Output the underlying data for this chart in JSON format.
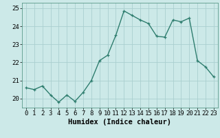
{
  "x": [
    0,
    1,
    2,
    3,
    4,
    5,
    6,
    7,
    8,
    9,
    10,
    11,
    12,
    13,
    14,
    15,
    16,
    17,
    18,
    19,
    20,
    21,
    22,
    23
  ],
  "y": [
    20.6,
    20.5,
    20.7,
    20.2,
    19.8,
    20.2,
    19.85,
    20.35,
    21.0,
    22.1,
    22.4,
    23.5,
    24.85,
    24.6,
    24.35,
    24.15,
    23.45,
    23.4,
    24.35,
    24.25,
    24.45,
    22.1,
    21.75,
    21.2
  ],
  "line_color": "#2e7d6e",
  "marker": "+",
  "marker_size": 3,
  "line_width": 1.0,
  "bg_color": "#cce9e8",
  "grid_color": "#aacfcf",
  "xlabel": "Humidex (Indice chaleur)",
  "xlabel_fontsize": 7.5,
  "ylim": [
    19.5,
    25.3
  ],
  "xlim": [
    -0.5,
    23.5
  ],
  "yticks": [
    20,
    21,
    22,
    23,
    24,
    25
  ],
  "xticks": [
    0,
    1,
    2,
    3,
    4,
    5,
    6,
    7,
    8,
    9,
    10,
    11,
    12,
    13,
    14,
    15,
    16,
    17,
    18,
    19,
    20,
    21,
    22,
    23
  ],
  "tick_fontsize": 6.5,
  "spine_color": "#5a9a8a"
}
